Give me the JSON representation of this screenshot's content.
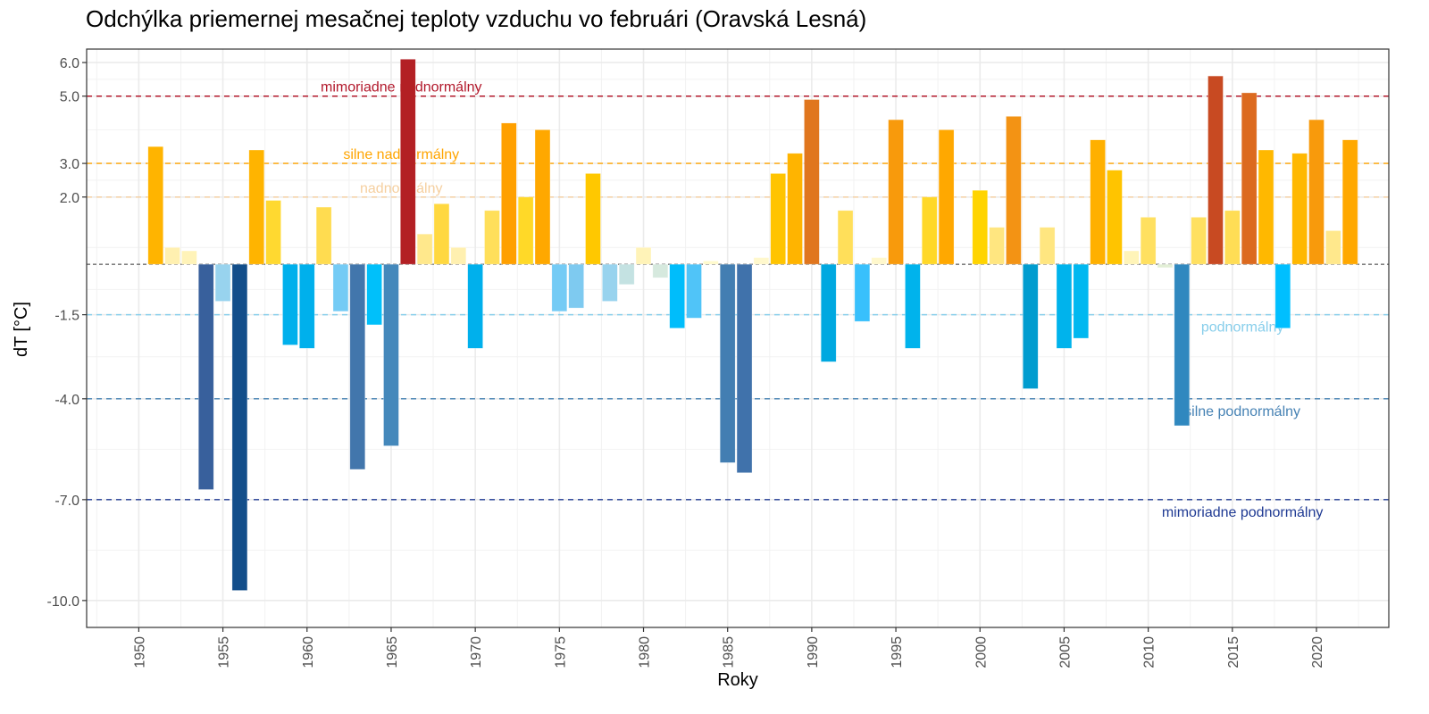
{
  "chart_data": {
    "type": "bar",
    "title": "Odchýlka priemernej mesačnej teploty vzduchu vo februári (Oravská Lesná)",
    "xlabel": "Roky",
    "ylabel": "dT [°C]",
    "xlim": [
      1946.9,
      2024.3
    ],
    "ylim": [
      -10.8,
      6.4
    ],
    "grid": true,
    "x_ticks": [
      1950,
      1955,
      1960,
      1965,
      1970,
      1975,
      1980,
      1985,
      1990,
      1995,
      2000,
      2005,
      2010,
      2015,
      2020
    ],
    "y_ticks": [
      6.0,
      5.0,
      3.0,
      2.0,
      -1.5,
      -4.0,
      -7.0,
      -10.0
    ],
    "y_tick_labels": [
      "6.0",
      "5.0",
      "3.0",
      "2.0",
      "-1.5",
      "-4.0",
      "-7.0",
      "-10.0"
    ],
    "y_minor_grid": [
      5.5,
      4.0,
      2.5,
      0.5,
      -0.75,
      -2.75,
      -5.5,
      -8.5
    ],
    "reference_lines": [
      {
        "value": 5.0,
        "label": "mimoriadne nadnormálny",
        "color": "#b2182b",
        "label_x": 1965.6,
        "label_side": "above"
      },
      {
        "value": 3.0,
        "label": "silne nadnormálny",
        "color": "#ffa500",
        "label_x": 1965.6,
        "label_side": "above"
      },
      {
        "value": 2.0,
        "label": "nadnormálny",
        "color": "#f5cf9f",
        "label_x": 1965.6,
        "label_side": "above"
      },
      {
        "value": 0.0,
        "label": "",
        "color": "#333333",
        "label_x": null,
        "label_side": "none"
      },
      {
        "value": -1.5,
        "label": "podnormálny",
        "color": "#87ceeb",
        "label_x": 2015.6,
        "label_side": "below"
      },
      {
        "value": -4.0,
        "label": "silne podnormálny",
        "color": "#4682b4",
        "label_x": 2015.6,
        "label_side": "below"
      },
      {
        "value": -7.0,
        "label": "mimoriadne podnormálny",
        "color": "#1f3a93",
        "label_x": 2015.6,
        "label_side": "below"
      }
    ],
    "series": [
      {
        "name": "dT",
        "x": [
          1951,
          1952,
          1953,
          1954,
          1955,
          1956,
          1957,
          1958,
          1959,
          1960,
          1961,
          1962,
          1963,
          1964,
          1965,
          1966,
          1967,
          1968,
          1969,
          1970,
          1971,
          1972,
          1973,
          1974,
          1975,
          1976,
          1977,
          1978,
          1979,
          1980,
          1981,
          1982,
          1983,
          1984,
          1985,
          1986,
          1987,
          1988,
          1989,
          1990,
          1991,
          1992,
          1993,
          1994,
          1995,
          1996,
          1997,
          1998,
          1999,
          2000,
          2001,
          2002,
          2003,
          2004,
          2005,
          2006,
          2007,
          2008,
          2009,
          2010,
          2011,
          2012,
          2013,
          2014,
          2015,
          2016,
          2017,
          2018,
          2019,
          2020,
          2021,
          2022
        ],
        "values": [
          3.5,
          0.5,
          0.4,
          -6.7,
          -1.1,
          -9.7,
          3.4,
          1.9,
          -2.4,
          -2.5,
          1.7,
          -1.4,
          -6.1,
          -1.8,
          -5.4,
          6.1,
          0.9,
          1.8,
          0.5,
          -2.5,
          1.6,
          4.2,
          2.0,
          4.0,
          -1.4,
          -1.3,
          2.7,
          -1.1,
          -0.6,
          0.5,
          -0.4,
          -1.9,
          -1.6,
          0.1,
          -5.9,
          -6.2,
          0.2,
          2.7,
          3.3,
          4.9,
          -2.9,
          1.6,
          -1.7,
          0.2,
          4.3,
          -2.5,
          2.0,
          4.0,
          0.0,
          2.2,
          1.1,
          4.4,
          -3.7,
          1.1,
          -2.5,
          -2.2,
          3.7,
          2.8,
          0.4,
          1.4,
          -0.1,
          -4.8,
          1.4,
          5.6,
          1.6,
          5.1,
          3.4,
          -1.9,
          3.3,
          4.3,
          1.0,
          3.7
        ],
        "colors": [
          "#ffb400",
          "#fff0b0",
          "#fff3b8",
          "#38609c",
          "#98d3ee",
          "#134e8a",
          "#ffb400",
          "#ffd930",
          "#00b0ec",
          "#00b0ec",
          "#ffdc50",
          "#74cbf5",
          "#4276ac",
          "#00c0fa",
          "#4488bb",
          "#b32024",
          "#ffe88c",
          "#ffd840",
          "#fff0b0",
          "#00b0ec",
          "#ffdf5a",
          "#ffa000",
          "#ffd928",
          "#ffa800",
          "#74cbf5",
          "#7ecaf0",
          "#ffc800",
          "#98d3ee",
          "#c4e2e2",
          "#fff3b8",
          "#d6e9de",
          "#00bdfb",
          "#50c4f8",
          "#fffacc",
          "#437eb2",
          "#4072ab",
          "#fff8cc",
          "#ffc400",
          "#ffb400",
          "#e0761e",
          "#00a8e0",
          "#ffdf5a",
          "#38c0fc",
          "#fff8cc",
          "#f89a0c",
          "#00b3ec",
          "#ffd828",
          "#ffa800",
          "#ffffff",
          "#ffd400",
          "#ffe680",
          "#f39314",
          "#009ccf",
          "#ffe680",
          "#00b3ec",
          "#00b8f0",
          "#ffb000",
          "#ffc400",
          "#fff4b8",
          "#ffe060",
          "#e2efd6",
          "#3088bf",
          "#ffe060",
          "#c84a22",
          "#ffdd55",
          "#dc6a1f",
          "#ffb800",
          "#00bfff",
          "#ffb800",
          "#f89a0c",
          "#ffe88c",
          "#ffa800"
        ]
      }
    ]
  }
}
